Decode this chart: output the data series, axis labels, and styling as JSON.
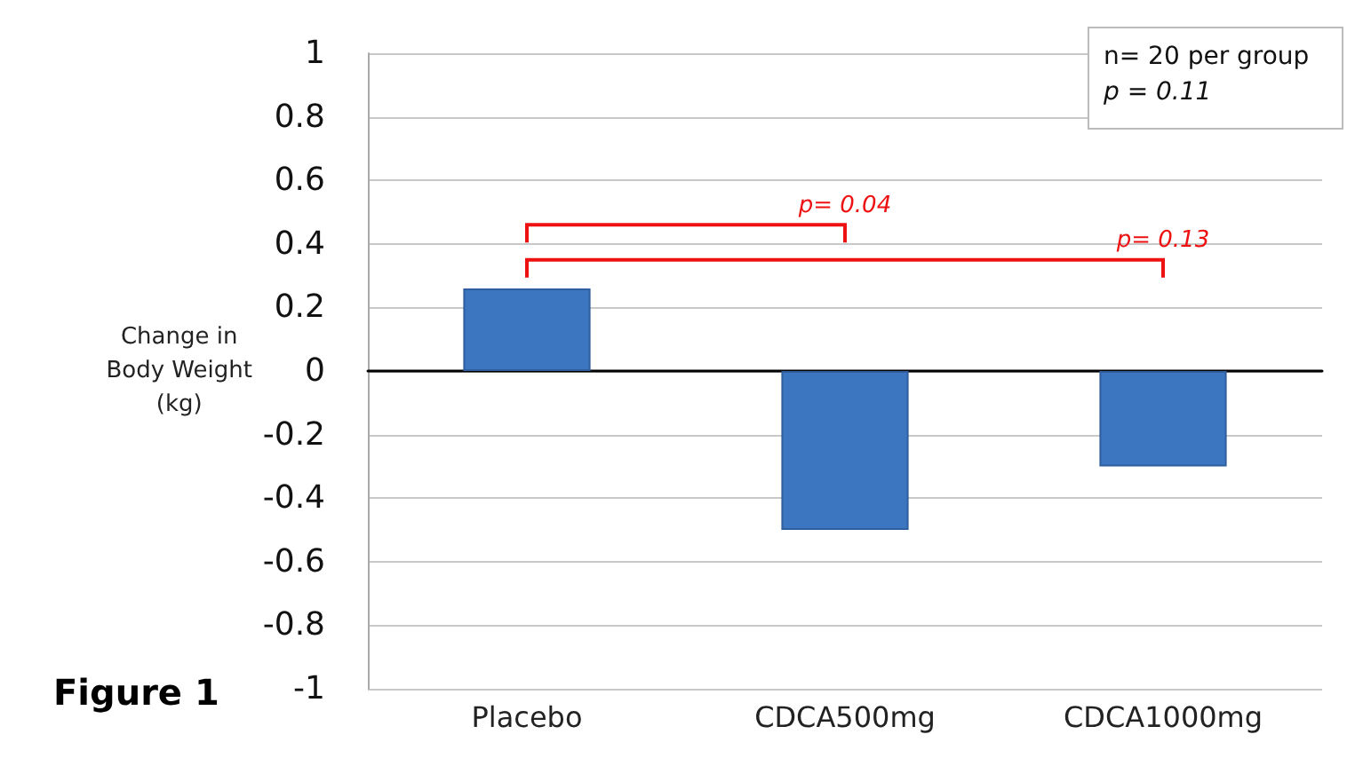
{
  "chart_data": {
    "type": "bar",
    "ylabel": "Change in\nBody Weight\n(kg)",
    "categories": [
      "Placebo",
      "CDCA500mg",
      "CDCA1000mg"
    ],
    "values": [
      0.26,
      -0.5,
      -0.3
    ],
    "color": "#3d76c0",
    "ylim": [
      -1,
      1
    ],
    "yticks": [
      -1,
      -0.8,
      -0.6,
      -0.4,
      -0.2,
      0,
      0.2,
      0.4,
      0.6,
      0.8,
      1
    ],
    "grid": "y",
    "annotations": [
      "p= 0.04",
      "p= 0.13",
      "n= 20 per group",
      "p = 0.11",
      "Figure 1"
    ]
  }
}
